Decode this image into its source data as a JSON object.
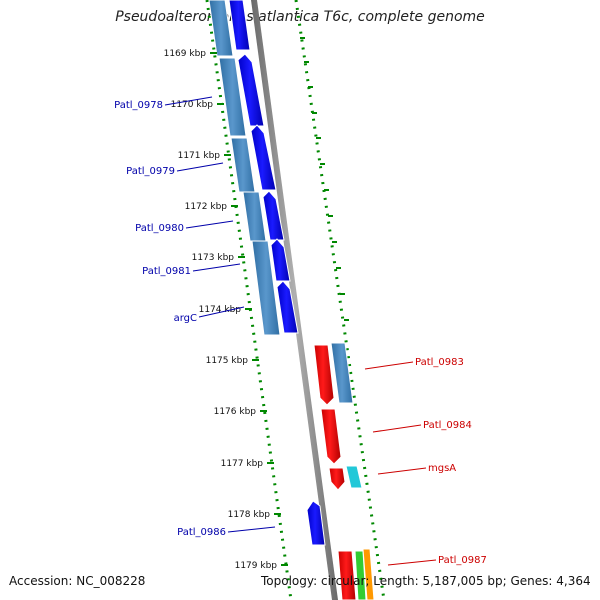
{
  "title": "Pseudoalteromonas atlantica T6c, complete genome",
  "footer": {
    "accession": "Accession: NC_008228",
    "summary": "Topology: circular; Length: 5,187,005 bp; Genes: 4,364"
  },
  "ticks": [
    {
      "label": "1169 kbp",
      "pos": 1169
    },
    {
      "label": "1170 kbp",
      "pos": 1170
    },
    {
      "label": "1171 kbp",
      "pos": 1171
    },
    {
      "label": "1172 kbp",
      "pos": 1172
    },
    {
      "label": "1173 kbp",
      "pos": 1173
    },
    {
      "label": "1174 kbp",
      "pos": 1174
    },
    {
      "label": "1175 kbp",
      "pos": 1175
    },
    {
      "label": "1176 kbp",
      "pos": 1176
    },
    {
      "label": "1177 kbp",
      "pos": 1177
    },
    {
      "label": "1178 kbp",
      "pos": 1178
    },
    {
      "label": "1179 kbp",
      "pos": 1179
    }
  ],
  "gene_labels": {
    "minus": [
      {
        "name": "Patl_0978"
      },
      {
        "name": "Patl_0979"
      },
      {
        "name": "Patl_0980"
      },
      {
        "name": "Patl_0981"
      },
      {
        "name": "argC"
      },
      {
        "name": "Patl_0986"
      }
    ],
    "plus": [
      {
        "name": "Patl_0983"
      },
      {
        "name": "Patl_0984"
      },
      {
        "name": "mgsA"
      },
      {
        "name": "Patl_0987"
      }
    ]
  },
  "colors": {
    "minus_cds": "#0000ee",
    "minus_gene": "#4682b4",
    "plus_cds": "#ee0000",
    "plus_gene": "#4682b4",
    "label_minus": "#0000aa",
    "label_plus": "#cc0000",
    "tick": "#008800",
    "backbone": "#808080"
  }
}
